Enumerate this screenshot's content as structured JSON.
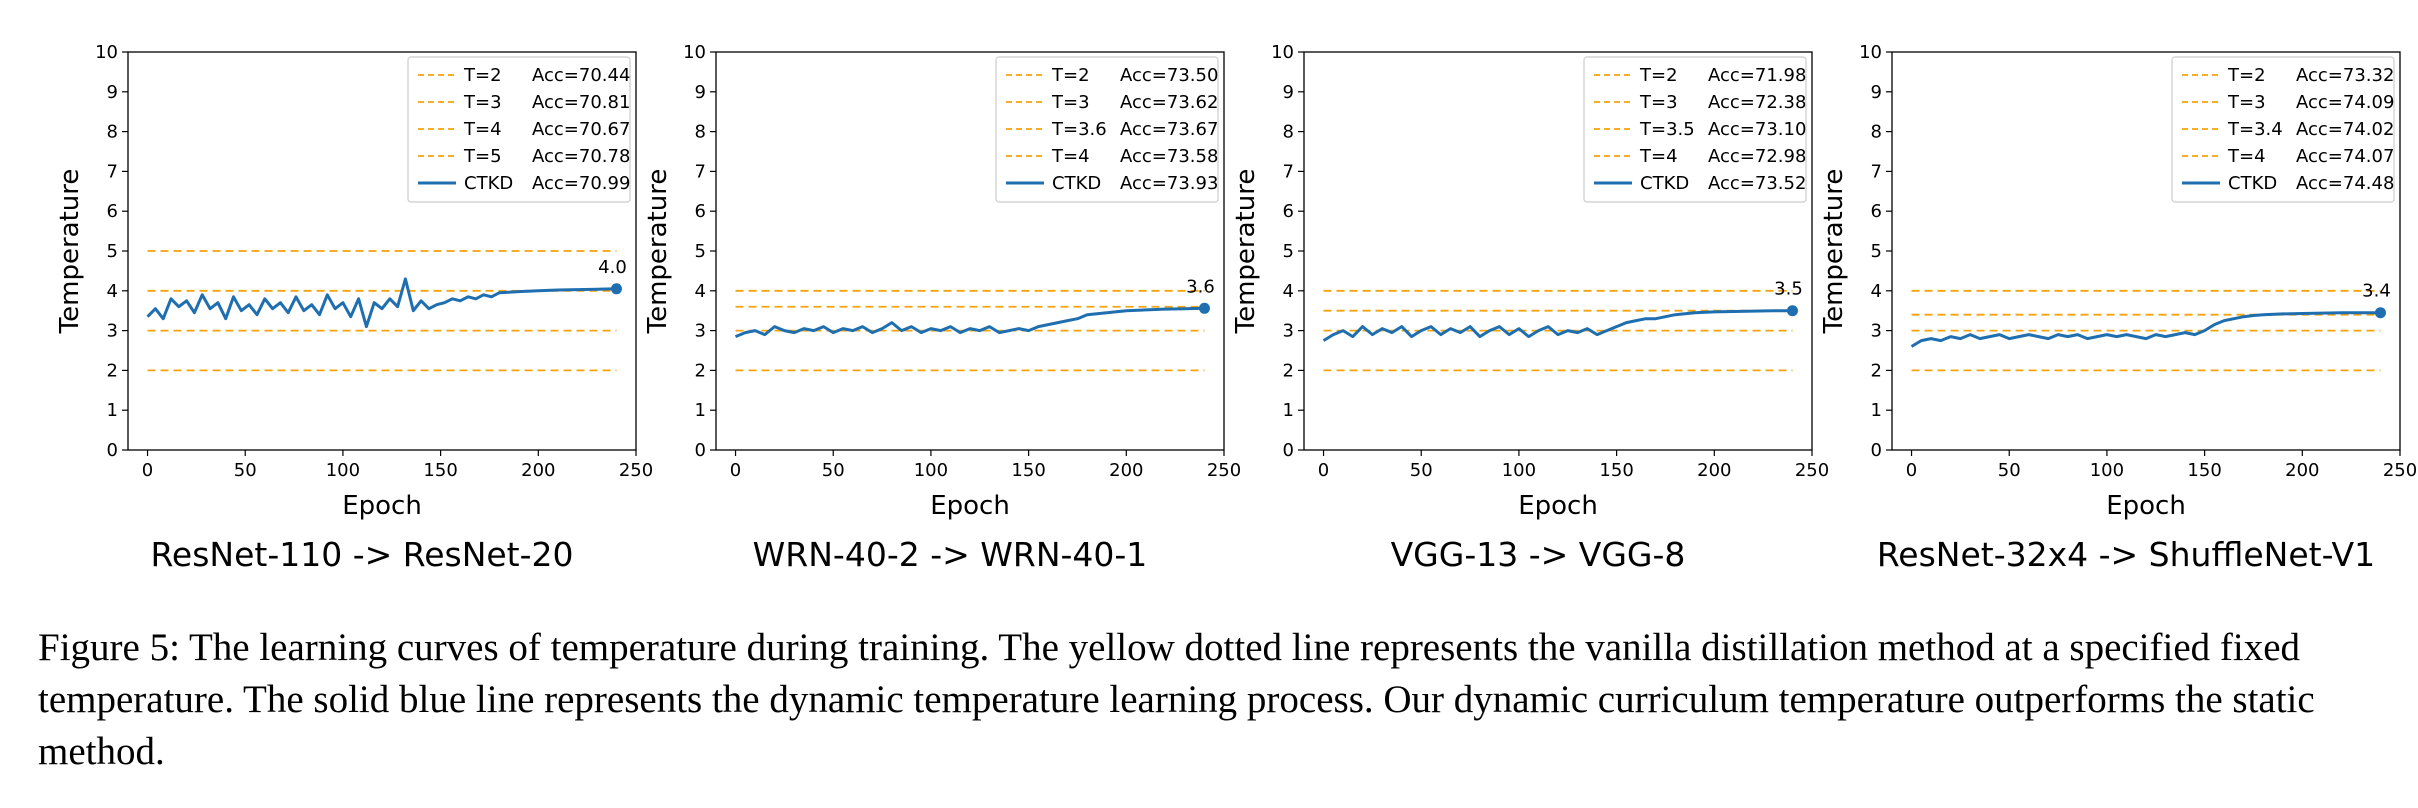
{
  "figure": {
    "caption": "Figure 5: The learning curves of temperature during training. The yellow dotted line represents the vanilla distillation method at a specified fixed temperature. The solid blue line represents the dynamic temperature learning process. Our dynamic curriculum temperature outperforms the static method."
  },
  "colors": {
    "fixed_temperature": "#f5a30a",
    "ctkd_curve": "#1f6fb0"
  },
  "chart_data": [
    {
      "type": "line",
      "panel_title": "ResNet-110 -> ResNet-20",
      "xlabel": "Epoch",
      "ylabel": "Temperature",
      "xlim": [
        -10,
        250
      ],
      "ylim": [
        0,
        10
      ],
      "xticks": [
        0,
        50,
        100,
        150,
        200,
        250
      ],
      "yticks": [
        0,
        1,
        2,
        3,
        4,
        5,
        6,
        7,
        8,
        9,
        10
      ],
      "fixed_lines": [
        {
          "T": "T=2",
          "acc": "Acc=70.44",
          "value": 2
        },
        {
          "T": "T=3",
          "acc": "Acc=70.81",
          "value": 3
        },
        {
          "T": "T=4",
          "acc": "Acc=70.67",
          "value": 4
        },
        {
          "T": "T=5",
          "acc": "Acc=70.78",
          "value": 5
        }
      ],
      "ctkd": {
        "name": "CTKD",
        "acc": "Acc=70.99",
        "final_label": "4.0",
        "x": [
          0,
          4,
          8,
          12,
          16,
          20,
          24,
          28,
          32,
          36,
          40,
          44,
          48,
          52,
          56,
          60,
          64,
          68,
          72,
          76,
          80,
          84,
          88,
          92,
          96,
          100,
          104,
          108,
          112,
          116,
          120,
          124,
          128,
          132,
          136,
          140,
          144,
          148,
          152,
          156,
          160,
          164,
          168,
          172,
          176,
          180,
          190,
          200,
          210,
          220,
          230,
          240
        ],
        "y": [
          3.35,
          3.55,
          3.3,
          3.8,
          3.6,
          3.75,
          3.45,
          3.9,
          3.55,
          3.7,
          3.3,
          3.85,
          3.5,
          3.65,
          3.4,
          3.8,
          3.55,
          3.7,
          3.45,
          3.85,
          3.5,
          3.65,
          3.4,
          3.9,
          3.55,
          3.7,
          3.35,
          3.8,
          3.1,
          3.7,
          3.55,
          3.8,
          3.6,
          4.3,
          3.5,
          3.75,
          3.55,
          3.65,
          3.7,
          3.8,
          3.75,
          3.85,
          3.8,
          3.9,
          3.85,
          3.95,
          3.98,
          4.0,
          4.02,
          4.03,
          4.04,
          4.05
        ]
      }
    },
    {
      "type": "line",
      "panel_title": "WRN-40-2 -> WRN-40-1",
      "xlabel": "Epoch",
      "ylabel": "Temperature",
      "xlim": [
        -10,
        250
      ],
      "ylim": [
        0,
        10
      ],
      "xticks": [
        0,
        50,
        100,
        150,
        200,
        250
      ],
      "yticks": [
        0,
        1,
        2,
        3,
        4,
        5,
        6,
        7,
        8,
        9,
        10
      ],
      "fixed_lines": [
        {
          "T": "T=2",
          "acc": "Acc=73.50",
          "value": 2
        },
        {
          "T": "T=3",
          "acc": "Acc=73.62",
          "value": 3
        },
        {
          "T": "T=3.6",
          "acc": "Acc=73.67",
          "value": 3.6
        },
        {
          "T": "T=4",
          "acc": "Acc=73.58",
          "value": 4
        }
      ],
      "ctkd": {
        "name": "CTKD",
        "acc": "Acc=73.93",
        "final_label": "3.6",
        "x": [
          0,
          5,
          10,
          15,
          20,
          25,
          30,
          35,
          40,
          45,
          50,
          55,
          60,
          65,
          70,
          75,
          80,
          85,
          90,
          95,
          100,
          105,
          110,
          115,
          120,
          125,
          130,
          135,
          140,
          145,
          150,
          155,
          160,
          165,
          170,
          175,
          180,
          190,
          200,
          210,
          220,
          230,
          240
        ],
        "y": [
          2.85,
          2.95,
          3.0,
          2.9,
          3.1,
          3.0,
          2.95,
          3.05,
          3.0,
          3.1,
          2.95,
          3.05,
          3.0,
          3.1,
          2.95,
          3.05,
          3.2,
          3.0,
          3.1,
          2.95,
          3.05,
          3.0,
          3.1,
          2.95,
          3.05,
          3.0,
          3.1,
          2.95,
          3.0,
          3.05,
          3.0,
          3.1,
          3.15,
          3.2,
          3.25,
          3.3,
          3.4,
          3.45,
          3.5,
          3.52,
          3.54,
          3.55,
          3.56
        ]
      }
    },
    {
      "type": "line",
      "panel_title": "VGG-13 -> VGG-8",
      "xlabel": "Epoch",
      "ylabel": "Temperature",
      "xlim": [
        -10,
        250
      ],
      "ylim": [
        0,
        10
      ],
      "xticks": [
        0,
        50,
        100,
        150,
        200,
        250
      ],
      "yticks": [
        0,
        1,
        2,
        3,
        4,
        5,
        6,
        7,
        8,
        9,
        10
      ],
      "fixed_lines": [
        {
          "T": "T=2",
          "acc": "Acc=71.98",
          "value": 2
        },
        {
          "T": "T=3",
          "acc": "Acc=72.38",
          "value": 3
        },
        {
          "T": "T=3.5",
          "acc": "Acc=73.10",
          "value": 3.5
        },
        {
          "T": "T=4",
          "acc": "Acc=72.98",
          "value": 4
        }
      ],
      "ctkd": {
        "name": "CTKD",
        "acc": "Acc=73.52",
        "final_label": "3.5",
        "x": [
          0,
          5,
          10,
          15,
          20,
          25,
          30,
          35,
          40,
          45,
          50,
          55,
          60,
          65,
          70,
          75,
          80,
          85,
          90,
          95,
          100,
          105,
          110,
          115,
          120,
          125,
          130,
          135,
          140,
          145,
          150,
          155,
          160,
          165,
          170,
          175,
          180,
          190,
          200,
          210,
          220,
          230,
          240
        ],
        "y": [
          2.75,
          2.9,
          3.0,
          2.85,
          3.1,
          2.9,
          3.05,
          2.95,
          3.1,
          2.85,
          3.0,
          3.1,
          2.9,
          3.05,
          2.95,
          3.1,
          2.85,
          3.0,
          3.1,
          2.9,
          3.05,
          2.85,
          3.0,
          3.1,
          2.9,
          3.0,
          2.95,
          3.05,
          2.9,
          3.0,
          3.1,
          3.2,
          3.25,
          3.3,
          3.3,
          3.35,
          3.4,
          3.45,
          3.47,
          3.48,
          3.49,
          3.5,
          3.5
        ]
      }
    },
    {
      "type": "line",
      "panel_title": "ResNet-32x4 -> ShuffleNet-V1",
      "xlabel": "Epoch",
      "ylabel": "Temperature",
      "xlim": [
        -10,
        250
      ],
      "ylim": [
        0,
        10
      ],
      "xticks": [
        0,
        50,
        100,
        150,
        200,
        250
      ],
      "yticks": [
        0,
        1,
        2,
        3,
        4,
        5,
        6,
        7,
        8,
        9,
        10
      ],
      "fixed_lines": [
        {
          "T": "T=2",
          "acc": "Acc=73.32",
          "value": 2
        },
        {
          "T": "T=3",
          "acc": "Acc=74.09",
          "value": 3
        },
        {
          "T": "T=3.4",
          "acc": "Acc=74.02",
          "value": 3.4
        },
        {
          "T": "T=4",
          "acc": "Acc=74.07",
          "value": 4
        }
      ],
      "ctkd": {
        "name": "CTKD",
        "acc": "Acc=74.48",
        "final_label": "3.4",
        "x": [
          0,
          5,
          10,
          15,
          20,
          25,
          30,
          35,
          40,
          45,
          50,
          55,
          60,
          65,
          70,
          75,
          80,
          85,
          90,
          95,
          100,
          105,
          110,
          115,
          120,
          125,
          130,
          135,
          140,
          145,
          150,
          155,
          160,
          165,
          170,
          175,
          180,
          190,
          200,
          210,
          220,
          230,
          240
        ],
        "y": [
          2.6,
          2.75,
          2.8,
          2.75,
          2.85,
          2.8,
          2.9,
          2.8,
          2.85,
          2.9,
          2.8,
          2.85,
          2.9,
          2.85,
          2.8,
          2.9,
          2.85,
          2.9,
          2.8,
          2.85,
          2.9,
          2.85,
          2.9,
          2.85,
          2.8,
          2.9,
          2.85,
          2.9,
          2.95,
          2.9,
          3.0,
          3.15,
          3.25,
          3.3,
          3.35,
          3.38,
          3.4,
          3.42,
          3.43,
          3.44,
          3.45,
          3.45,
          3.45
        ]
      }
    }
  ]
}
